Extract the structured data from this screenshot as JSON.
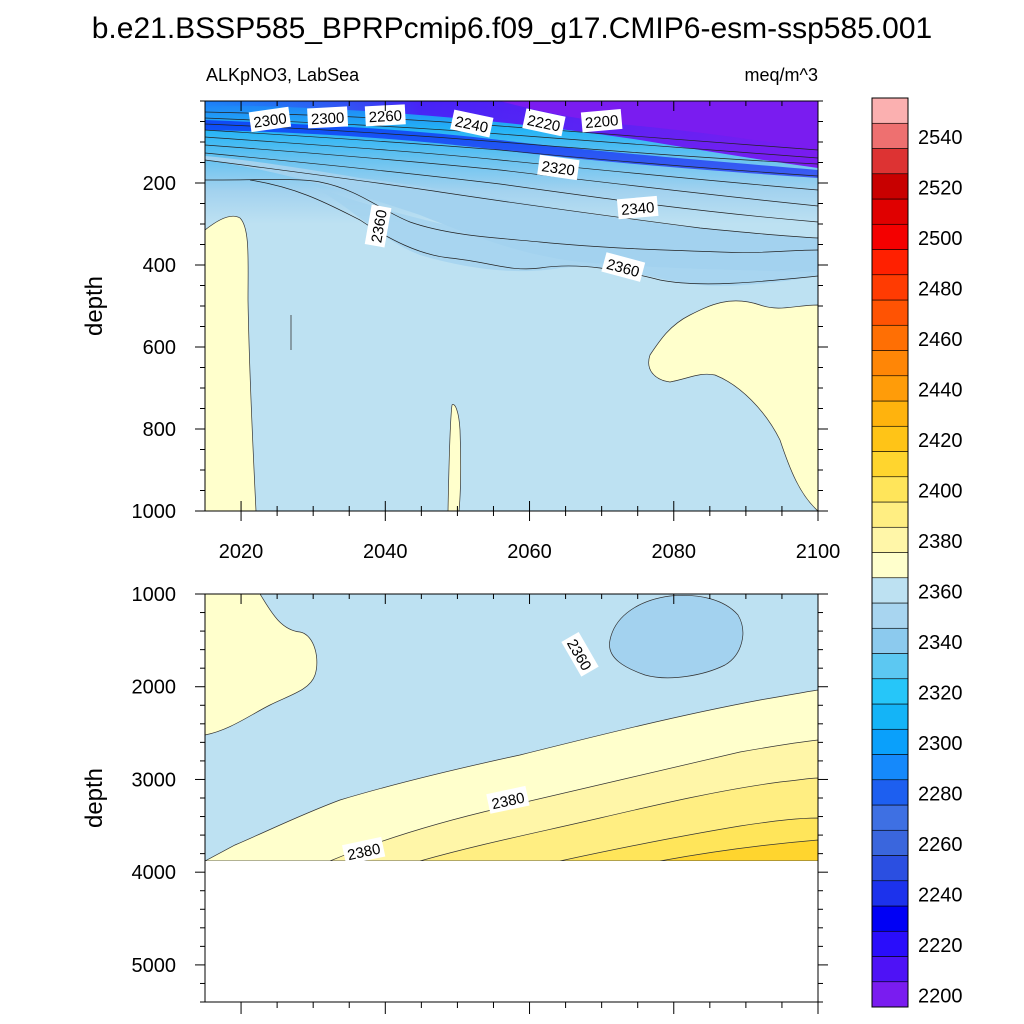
{
  "figure": {
    "title": "b.e21.BSSP585_BPRPcmip6.f09_g17.CMIP6-esm-ssp585.001",
    "variable_label": "ALKpNO3, LabSea",
    "units_label": "meq/m^3"
  },
  "chart_data": [
    {
      "type": "heatmap",
      "panel": "upper",
      "subtitle_left": "ALKpNO3, LabSea",
      "subtitle_right": "meq/m^3",
      "ylabel": "depth",
      "xlabel": "",
      "xlim": [
        2015,
        2100
      ],
      "ylim": [
        1000,
        0
      ],
      "x_ticks": [
        2020,
        2040,
        2060,
        2080,
        2100
      ],
      "y_ticks": [
        200,
        400,
        600,
        800,
        1000
      ],
      "contour_labels": [
        {
          "text": "2300",
          "x": 2024,
          "y": 45
        },
        {
          "text": "2300",
          "x": 2032,
          "y": 40
        },
        {
          "text": "2260",
          "x": 2040,
          "y": 35
        },
        {
          "text": "2240",
          "x": 2052,
          "y": 55
        },
        {
          "text": "2220",
          "x": 2062,
          "y": 52
        },
        {
          "text": "2200",
          "x": 2070,
          "y": 48
        },
        {
          "text": "2320",
          "x": 2064,
          "y": 162
        },
        {
          "text": "2340",
          "x": 2075,
          "y": 260
        },
        {
          "text": "2360",
          "x": 2039,
          "y": 305
        },
        {
          "text": "2360",
          "x": 2073,
          "y": 405
        }
      ]
    },
    {
      "type": "heatmap",
      "panel": "lower",
      "ylabel": "depth",
      "xlabel": "",
      "xlim": [
        2015,
        2100
      ],
      "ylim": [
        5400,
        1000
      ],
      "max_depth_with_data": 3880,
      "y_ticks": [
        1000,
        2000,
        3000,
        4000,
        5000
      ],
      "contour_labels": [
        {
          "text": "2360",
          "x": 2067,
          "y": 1650
        },
        {
          "text": "2380",
          "x": 2057,
          "y": 3220
        },
        {
          "text": "2380",
          "x": 2037,
          "y": 3770
        }
      ]
    }
  ],
  "colorbar": {
    "levels": [
      2200,
      2210,
      2220,
      2230,
      2240,
      2250,
      2260,
      2270,
      2280,
      2290,
      2300,
      2310,
      2320,
      2330,
      2340,
      2350,
      2360,
      2370,
      2380,
      2390,
      2400,
      2410,
      2420,
      2430,
      2440,
      2450,
      2460,
      2470,
      2480,
      2490,
      2500,
      2510,
      2520,
      2530,
      2540,
      2550
    ],
    "tick_labels": [
      2200,
      2220,
      2240,
      2260,
      2280,
      2300,
      2320,
      2340,
      2360,
      2380,
      2400,
      2420,
      2440,
      2460,
      2480,
      2500,
      2520,
      2540
    ],
    "colors": [
      "#7a1cf0",
      "#4e12f6",
      "#2a0dfb",
      "#0000f5",
      "#1c32ec",
      "#2b4fe1",
      "#3a66dd",
      "#3e70e3",
      "#1d5ff0",
      "#1589fb",
      "#0aa0fb",
      "#14b4f7",
      "#26c6f9",
      "#5cc8f2",
      "#8ccaee",
      "#a8d5f0",
      "#bde1f2",
      "#ffffcc",
      "#fff6a8",
      "#ffee82",
      "#ffe55a",
      "#ffd52e",
      "#ffc417",
      "#ffb30d",
      "#ff9c09",
      "#ff8606",
      "#ff6f04",
      "#ff5303",
      "#ff3b02",
      "#ff2000",
      "#f40000",
      "#e00000",
      "#c80000",
      "#dd3333",
      "#ee7070",
      "#fbb0b0"
    ]
  }
}
